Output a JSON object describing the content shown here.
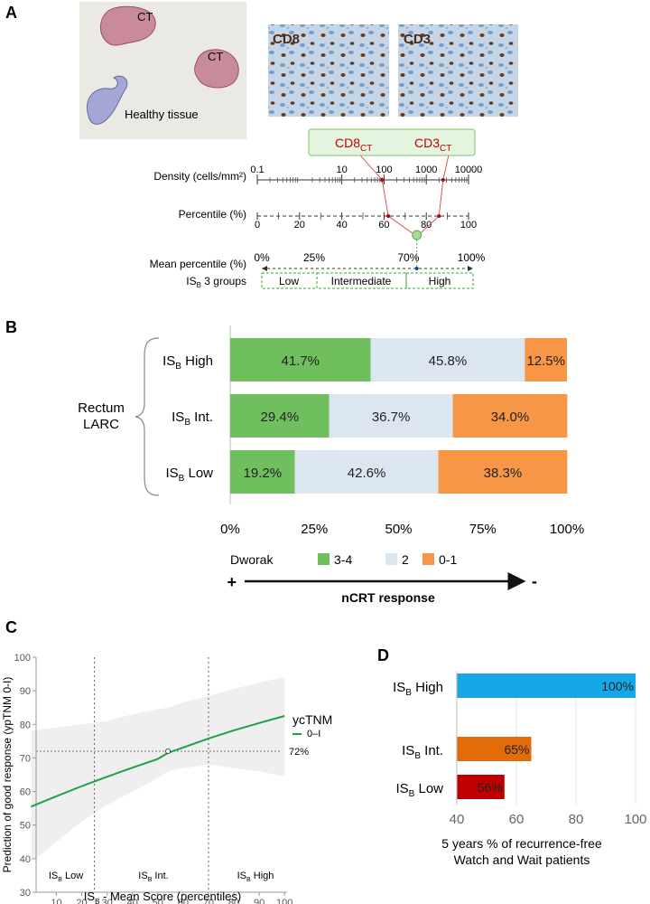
{
  "panels": {
    "a": "A",
    "b": "B",
    "c": "C",
    "d": "D"
  },
  "panel_a": {
    "tissue_labels": [
      "CT",
      "CT",
      "Healthy tissue"
    ],
    "ihc": [
      "CD8",
      "CD3"
    ],
    "markers": {
      "cd8": "CD8",
      "cd3": "CD3",
      "sub": "CT"
    },
    "density_label": "Density (cells/mm²)",
    "density_ticks": [
      "0.1",
      "10",
      "100",
      "1000",
      "10000"
    ],
    "percentile_label": "Percentile (%)",
    "percentile_ticks": [
      "0",
      "20",
      "40",
      "60",
      "80",
      "100"
    ],
    "mean_label": "Mean percentile (%)",
    "mean_ticks": [
      "0%",
      "25%",
      "70%",
      "100%"
    ],
    "groups_label": {
      "main": "IS",
      "sub": "B",
      "rest": " 3 groups"
    },
    "groups": [
      "Low",
      "Intermediate",
      "High"
    ],
    "values": {
      "cd8_density": 90,
      "cd3_density": 2500,
      "cd8_percentile": 62,
      "cd3_percentile": 86,
      "mean_percentile": 74
    }
  },
  "panel_b": {
    "group_title": [
      "Rectum",
      "LARC"
    ],
    "legend_title": "Dworak",
    "response_label": "nCRT response",
    "response_plus": "+",
    "response_minus": "-"
  },
  "panel_c": {
    "ref_label": "72%",
    "legend_title": "ycTNM",
    "legend_entry": "0–I",
    "ylabel": "Prediction of good response (ypTNM 0-I)",
    "xlabel": {
      "main": "IS",
      "sub": "B",
      "rest": " - Mean Score (percentiles)"
    },
    "region_labels": [
      "Low",
      "Int.",
      "High"
    ]
  },
  "panel_d": {
    "xlabel": [
      "5 years % of recurrence-free",
      "Watch and Wait patients"
    ]
  },
  "chart_data": [
    {
      "panel": "B",
      "type": "bar",
      "orientation": "horizontal",
      "stacked": true,
      "categories": [
        "IS_B High",
        "IS_B Int.",
        "IS_B Low"
      ],
      "category_display": [
        {
          "main": "IS",
          "sub": "B",
          "rest": " High"
        },
        {
          "main": "IS",
          "sub": "B",
          "rest": " Int."
        },
        {
          "main": "IS",
          "sub": "B",
          "rest": " Low"
        }
      ],
      "series": [
        {
          "name": "3-4",
          "color": "#70bf5f",
          "values": [
            41.7,
            29.4,
            19.2
          ],
          "labels": [
            "41.7%",
            "29.4%",
            "19.2%"
          ]
        },
        {
          "name": "2",
          "color": "#dce6f0",
          "values": [
            45.8,
            36.7,
            42.6
          ],
          "labels": [
            "45.8%",
            "36.7%",
            "42.6%"
          ]
        },
        {
          "name": "0-1",
          "color": "#f79646",
          "values": [
            12.5,
            34.0,
            38.3
          ],
          "labels": [
            "12.5%",
            "34.0%",
            "38.3%"
          ]
        }
      ],
      "xlim": [
        0,
        100
      ],
      "xticks": [
        "0%",
        "25%",
        "50%",
        "75%",
        "100%"
      ],
      "legend_title": "Dworak"
    },
    {
      "panel": "C",
      "type": "line",
      "series": [
        {
          "name": "0–I",
          "color": "#1aa34a",
          "x": [
            0,
            10,
            20,
            30,
            40,
            50,
            54,
            60,
            70,
            80,
            90,
            100
          ],
          "y": [
            55.5,
            58.6,
            61.6,
            64.4,
            67.1,
            69.7,
            71.5,
            73.1,
            75.8,
            78.2,
            80.4,
            82.5
          ],
          "ci_lower": [
            39,
            45,
            51,
            56,
            60,
            64,
            66,
            67,
            68,
            67,
            66,
            64.5
          ],
          "ci_upper": [
            78,
            79,
            80,
            81,
            83,
            84.5,
            85,
            86.5,
            88.5,
            90.5,
            92.5,
            94
          ]
        }
      ],
      "xlim": [
        2,
        101
      ],
      "ylim": [
        30,
        100
      ],
      "xticks": [
        10,
        20,
        30,
        40,
        50,
        60,
        70,
        80,
        90,
        100
      ],
      "yticks": [
        30,
        40,
        50,
        60,
        70,
        80,
        90,
        100
      ],
      "vlines": [
        25,
        70
      ],
      "hline": 72,
      "marker_x": 54
    },
    {
      "panel": "D",
      "type": "bar",
      "orientation": "horizontal",
      "categories": [
        "IS_B High",
        "IS_B Int.",
        "IS_B Low"
      ],
      "category_display": [
        {
          "main": "IS",
          "sub": "B",
          "rest": " High"
        },
        {
          "main": "IS",
          "sub": "B",
          "rest": " Int."
        },
        {
          "main": "IS",
          "sub": "B",
          "rest": " Low"
        }
      ],
      "values": [
        100,
        65,
        56
      ],
      "labels": [
        "100%",
        "65%",
        "56%"
      ],
      "colors": [
        "#16a7e8",
        "#e36c0a",
        "#c00000"
      ],
      "xlim": [
        40,
        100
      ],
      "xticks": [
        40,
        60,
        80,
        100
      ]
    }
  ]
}
